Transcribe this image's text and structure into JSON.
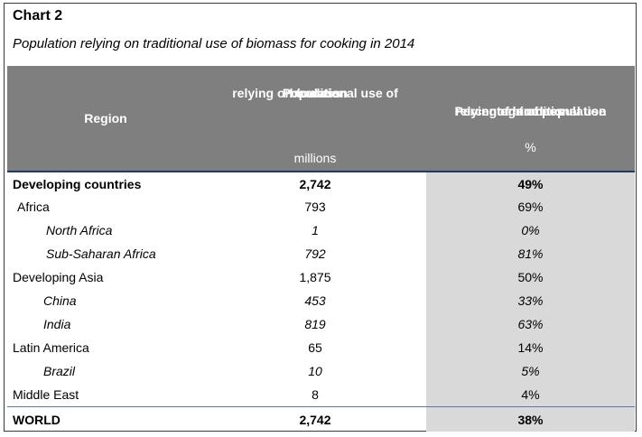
{
  "chart_label": "Chart 2",
  "subtitle": "Population relying on traditional use of biomass for cooking in 2014",
  "columns": {
    "region": "Region",
    "population_lines": [
      "Population",
      "relying on traditional use of",
      "biomass"
    ],
    "population_unit": "millions",
    "percentage_lines": [
      "Percentage of population",
      "relying on traditional use",
      "of biomass"
    ],
    "percentage_unit": "%"
  },
  "rows": [
    {
      "region": "Developing countries",
      "population": "2,742",
      "percentage": "49%"
    },
    {
      "region": "Africa",
      "population": "793",
      "percentage": "69%"
    },
    {
      "region": "North Africa",
      "population": "1",
      "percentage": "0%"
    },
    {
      "region": "Sub-Saharan Africa",
      "population": "792",
      "percentage": "81%"
    },
    {
      "region": "Developing Asia",
      "population": "1,875",
      "percentage": "50%"
    },
    {
      "region": "China",
      "population": "453",
      "percentage": "33%"
    },
    {
      "region": "India",
      "population": "819",
      "percentage": "63%"
    },
    {
      "region": "Latin America",
      "population": "65",
      "percentage": "14%"
    },
    {
      "region": "Brazil",
      "population": "10",
      "percentage": "5%"
    },
    {
      "region": "Middle East",
      "population": "8",
      "percentage": "4%"
    },
    {
      "region": "WORLD",
      "population": "2,742",
      "percentage": "38%"
    }
  ]
}
